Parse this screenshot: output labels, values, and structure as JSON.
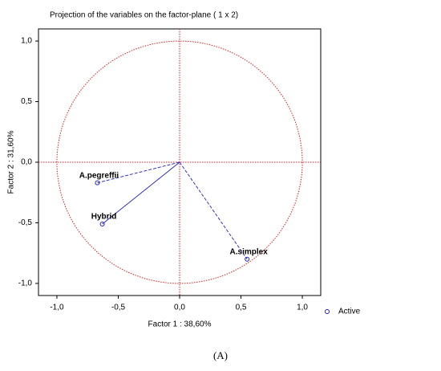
{
  "chart_data": {
    "type": "scatter",
    "title": "Projection of the variables on the factor-plane ( 1 x  2)",
    "xlabel": "Factor 1 : 38,60%",
    "ylabel": "Factor 2 : 31,60%",
    "xlim": [
      -1.15,
      1.15
    ],
    "ylim": [
      -1.1,
      1.1
    ],
    "xticks": [
      {
        "value": -1.0,
        "label": "-1,0"
      },
      {
        "value": -0.5,
        "label": "-0,5"
      },
      {
        "value": 0.0,
        "label": "0,0"
      },
      {
        "value": 0.5,
        "label": "0,5"
      },
      {
        "value": 1.0,
        "label": "1,0"
      }
    ],
    "yticks": [
      {
        "value": -1.0,
        "label": "-1,0"
      },
      {
        "value": -0.5,
        "label": "-0,5"
      },
      {
        "value": 0.0,
        "label": "0,0"
      },
      {
        "value": 0.5,
        "label": "0,5"
      },
      {
        "value": 1.0,
        "label": "1,0"
      }
    ],
    "points": [
      {
        "name": "A.pegreffii",
        "x": -0.67,
        "y": -0.17,
        "label_color": "#1c1ca8",
        "dashed": true
      },
      {
        "name": "Hybrid",
        "x": -0.63,
        "y": -0.51,
        "label_color": "#e01818",
        "dashed": false
      },
      {
        "name": "A.simplex",
        "x": 0.55,
        "y": -0.8,
        "label_color": "#18a868",
        "dashed": true
      }
    ],
    "marker_color": "#2020c0",
    "circle_color": "#e02020",
    "legend": "Active",
    "legend_loc": "lower right"
  },
  "caption": "(A)"
}
